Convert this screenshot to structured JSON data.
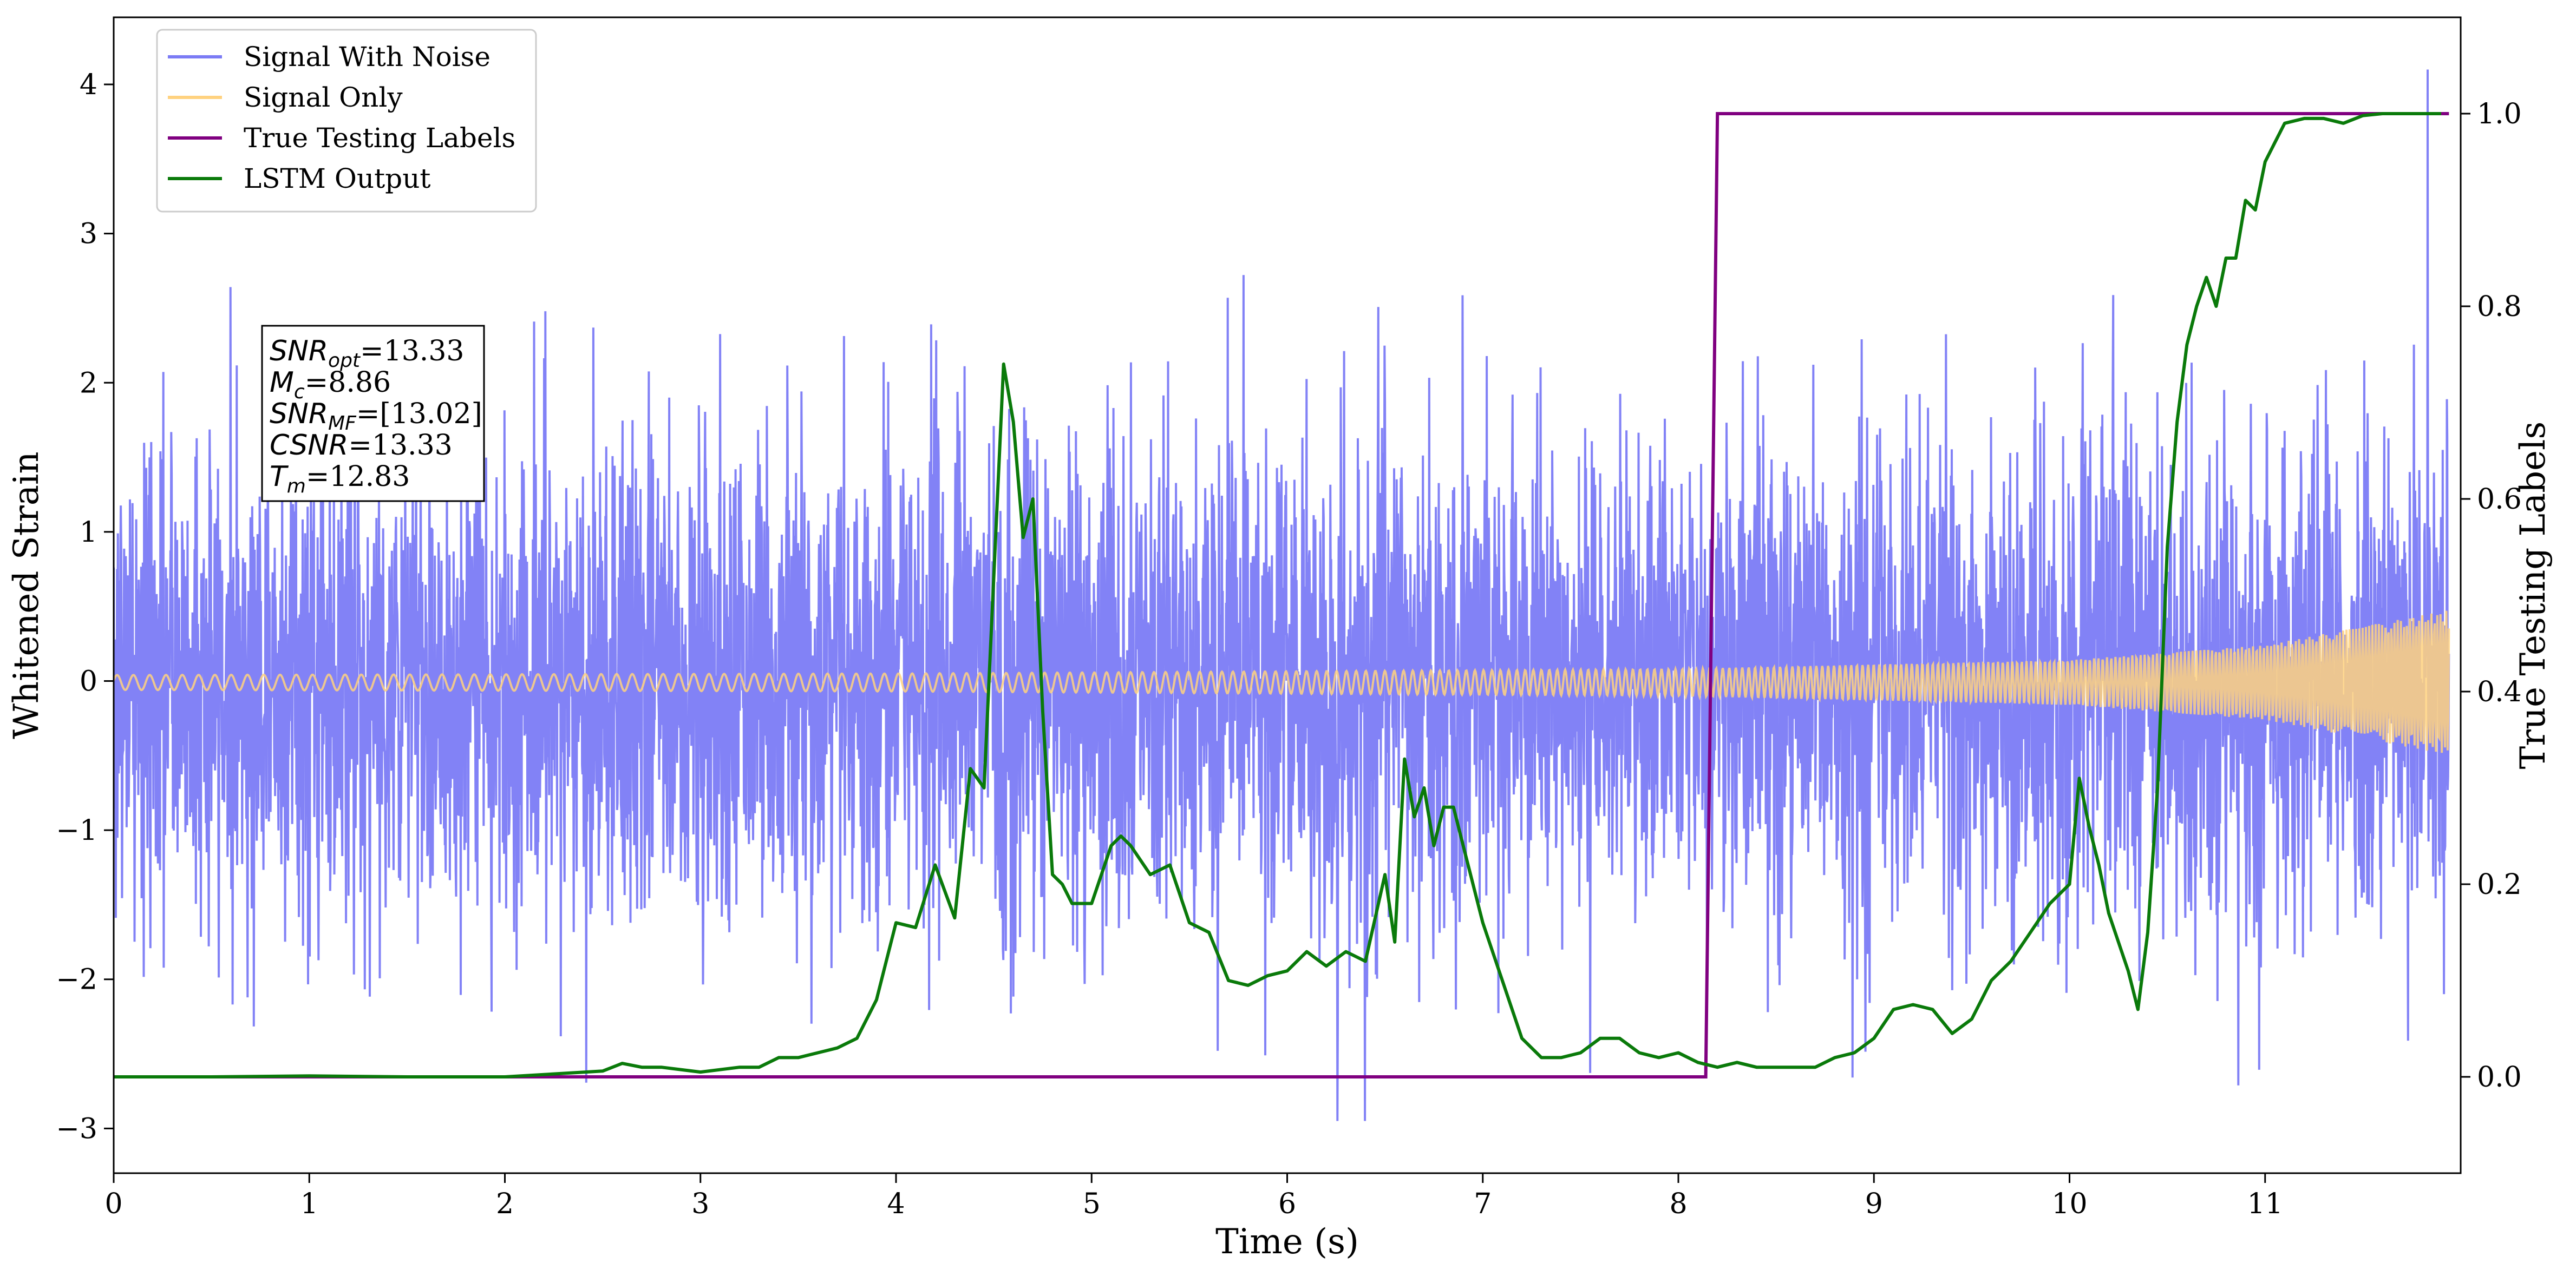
{
  "chart_data": {
    "type": "line",
    "title": "",
    "xlabel": "Time (s)",
    "ylabel": "Whitened Strain",
    "y2label": "True Testing Labels",
    "xlim": [
      0,
      12
    ],
    "ylim": [
      -3.3,
      4.45
    ],
    "y2lim": [
      -0.1,
      1.1
    ],
    "xticks": [
      0,
      1,
      2,
      3,
      4,
      5,
      6,
      7,
      8,
      9,
      10,
      11
    ],
    "yticks": [
      -3,
      -2,
      -1,
      0,
      1,
      2,
      3,
      4
    ],
    "ytick_labels": [
      "−3",
      "−2",
      "−1",
      "0",
      "1",
      "2",
      "3",
      "4"
    ],
    "y2ticks": [
      0.0,
      0.2,
      0.4,
      0.6,
      0.8,
      1.0
    ],
    "y2tick_labels": [
      "0.0",
      "0.2",
      "0.4",
      "0.6",
      "0.8",
      "1.0"
    ],
    "grid": false,
    "legend_position": "top-left",
    "legend": [
      {
        "label": "Signal With Noise",
        "color": "#7b7bf5"
      },
      {
        "label": "Signal Only",
        "color": "#ffd27f"
      },
      {
        "label": "True Testing  Labels",
        "color": "#800080"
      },
      {
        "label": "LSTM Output",
        "color": "#0a7a0a"
      }
    ],
    "annotation": [
      {
        "base": "SNR",
        "sub": "opt",
        "value": "=13.33"
      },
      {
        "base": "M",
        "sub": "c",
        "value": "=8.86"
      },
      {
        "base": "SNR",
        "sub": "MF",
        "value": "=[13.02]"
      },
      {
        "base": "CSNR",
        "sub": "",
        "value": "=13.33"
      },
      {
        "base": "T",
        "sub": "m",
        "value": "=12.83"
      }
    ],
    "series": [
      {
        "name": "Signal With Noise",
        "axis": "left",
        "color": "#7b7bf5",
        "description_range": [
          -3,
          4.1
        ],
        "peak": {
          "x": 11.83,
          "y": 4.1
        }
      },
      {
        "name": "Signal Only",
        "axis": "left",
        "color": "#ffd27f",
        "amplitude_x": [
          0,
          4,
          8,
          10,
          11,
          12
        ],
        "amplitude_y": [
          0.05,
          0.06,
          0.09,
          0.15,
          0.25,
          0.5
        ]
      },
      {
        "name": "True Testing  Labels",
        "axis": "right",
        "color": "#800080",
        "x": [
          0,
          8.14,
          8.2,
          11.94
        ],
        "y": [
          0.0,
          0.0,
          1.0,
          1.0
        ]
      },
      {
        "name": "LSTM Output",
        "axis": "right",
        "color": "#0a7a0a",
        "x": [
          0,
          0.5,
          1.0,
          1.5,
          2.0,
          2.5,
          2.6,
          2.7,
          2.8,
          3.0,
          3.2,
          3.3,
          3.4,
          3.5,
          3.6,
          3.7,
          3.8,
          3.9,
          3.95,
          4.0,
          4.1,
          4.2,
          4.3,
          4.38,
          4.45,
          4.55,
          4.6,
          4.65,
          4.7,
          4.75,
          4.8,
          4.85,
          4.9,
          5.0,
          5.1,
          5.15,
          5.2,
          5.3,
          5.4,
          5.5,
          5.6,
          5.7,
          5.8,
          5.9,
          6.0,
          6.1,
          6.2,
          6.3,
          6.4,
          6.5,
          6.55,
          6.6,
          6.65,
          6.7,
          6.75,
          6.8,
          6.85,
          6.9,
          7.0,
          7.1,
          7.2,
          7.3,
          7.4,
          7.5,
          7.6,
          7.7,
          7.8,
          7.9,
          8.0,
          8.1,
          8.2,
          8.3,
          8.4,
          8.5,
          8.6,
          8.7,
          8.8,
          8.9,
          9.0,
          9.1,
          9.2,
          9.3,
          9.4,
          9.5,
          9.6,
          9.7,
          9.8,
          9.9,
          10.0,
          10.05,
          10.1,
          10.15,
          10.2,
          10.3,
          10.35,
          10.4,
          10.45,
          10.5,
          10.55,
          10.6,
          10.65,
          10.7,
          10.75,
          10.8,
          10.85,
          10.9,
          10.95,
          11.0,
          11.05,
          11.1,
          11.2,
          11.3,
          11.4,
          11.5,
          11.6,
          11.7,
          11.8,
          11.9
        ],
        "y": [
          0.0,
          0.0,
          0.001,
          0.0,
          0.0,
          0.006,
          0.014,
          0.01,
          0.01,
          0.005,
          0.01,
          0.01,
          0.02,
          0.02,
          0.025,
          0.03,
          0.04,
          0.08,
          0.12,
          0.16,
          0.155,
          0.22,
          0.165,
          0.32,
          0.3,
          0.74,
          0.68,
          0.56,
          0.6,
          0.38,
          0.21,
          0.2,
          0.18,
          0.18,
          0.24,
          0.25,
          0.24,
          0.21,
          0.22,
          0.16,
          0.15,
          0.1,
          0.095,
          0.105,
          0.11,
          0.13,
          0.115,
          0.13,
          0.12,
          0.21,
          0.14,
          0.33,
          0.27,
          0.3,
          0.24,
          0.28,
          0.28,
          0.24,
          0.16,
          0.1,
          0.04,
          0.02,
          0.02,
          0.025,
          0.04,
          0.04,
          0.025,
          0.02,
          0.025,
          0.015,
          0.01,
          0.015,
          0.01,
          0.01,
          0.01,
          0.01,
          0.02,
          0.025,
          0.04,
          0.07,
          0.075,
          0.07,
          0.045,
          0.06,
          0.1,
          0.12,
          0.15,
          0.18,
          0.2,
          0.31,
          0.26,
          0.22,
          0.17,
          0.11,
          0.07,
          0.15,
          0.3,
          0.55,
          0.68,
          0.76,
          0.8,
          0.83,
          0.8,
          0.85,
          0.85,
          0.91,
          0.9,
          0.95,
          0.97,
          0.99,
          0.995,
          0.995,
          0.99,
          0.998,
          1.0,
          1.0,
          1.0,
          1.0
        ]
      }
    ]
  }
}
